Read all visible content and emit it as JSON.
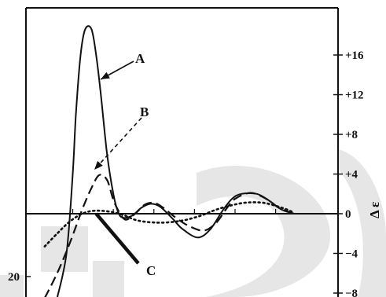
{
  "chart_data": {
    "type": "line",
    "xlim": [
      0,
      1
    ],
    "left_axis": {
      "ticks": [
        {
          "value": 20,
          "label": "20"
        }
      ]
    },
    "right_axis": {
      "title": "Δ ε",
      "ylim": [
        -8,
        20
      ],
      "ticks": [
        {
          "value": 16,
          "label": "+16"
        },
        {
          "value": 12,
          "label": "+12"
        },
        {
          "value": 8,
          "label": "+8"
        },
        {
          "value": 4,
          "label": "+4"
        },
        {
          "value": 0,
          "label": "0"
        },
        {
          "value": -4,
          "label": "−4"
        },
        {
          "value": -8,
          "label": "−8"
        }
      ]
    },
    "zero_line": 0,
    "series": [
      {
        "name": "A",
        "style": "solid",
        "points": [
          [
            0.1,
            -8.5
          ],
          [
            0.13,
            -4
          ],
          [
            0.15,
            4
          ],
          [
            0.16,
            10
          ],
          [
            0.175,
            16
          ],
          [
            0.19,
            18.6
          ],
          [
            0.21,
            18.6
          ],
          [
            0.225,
            16
          ],
          [
            0.24,
            12
          ],
          [
            0.26,
            6
          ],
          [
            0.28,
            2
          ],
          [
            0.295,
            0.2
          ],
          [
            0.31,
            -0.4
          ],
          [
            0.34,
            -0.2
          ],
          [
            0.37,
            0.6
          ],
          [
            0.4,
            1
          ],
          [
            0.43,
            0.7
          ],
          [
            0.47,
            -0.5
          ],
          [
            0.5,
            -1.5
          ],
          [
            0.55,
            -2.4
          ],
          [
            0.59,
            -1.6
          ],
          [
            0.63,
            0.3
          ],
          [
            0.66,
            1.5
          ],
          [
            0.69,
            2
          ],
          [
            0.74,
            2
          ],
          [
            0.78,
            1.3
          ],
          [
            0.82,
            0.4
          ],
          [
            0.86,
            0
          ]
        ]
      },
      {
        "name": "B",
        "style": "dashed",
        "points": [
          [
            0.06,
            -8.5
          ],
          [
            0.1,
            -6
          ],
          [
            0.14,
            -3
          ],
          [
            0.18,
            0.4
          ],
          [
            0.21,
            2.6
          ],
          [
            0.235,
            3.9
          ],
          [
            0.26,
            3.4
          ],
          [
            0.28,
            1.4
          ],
          [
            0.3,
            0.1
          ],
          [
            0.32,
            -0.6
          ],
          [
            0.35,
            0
          ],
          [
            0.38,
            0.9
          ],
          [
            0.41,
            1.1
          ],
          [
            0.44,
            0.6
          ],
          [
            0.48,
            -0.4
          ],
          [
            0.52,
            -1.2
          ],
          [
            0.57,
            -1.7
          ],
          [
            0.61,
            -0.9
          ],
          [
            0.64,
            0.4
          ],
          [
            0.67,
            1.5
          ],
          [
            0.72,
            2.1
          ],
          [
            0.77,
            1.5
          ],
          [
            0.81,
            0.6
          ],
          [
            0.86,
            0
          ]
        ]
      },
      {
        "name": "",
        "style": "dotted",
        "points": [
          [
            0.06,
            -3.3
          ],
          [
            0.1,
            -2
          ],
          [
            0.14,
            -0.8
          ],
          [
            0.18,
            0
          ],
          [
            0.22,
            0.3
          ],
          [
            0.27,
            0.2
          ],
          [
            0.31,
            -0.1
          ],
          [
            0.36,
            -0.7
          ],
          [
            0.43,
            -0.9
          ],
          [
            0.5,
            -0.7
          ],
          [
            0.56,
            -0.2
          ],
          [
            0.6,
            0.3
          ],
          [
            0.64,
            0.7
          ],
          [
            0.7,
            1.1
          ],
          [
            0.76,
            1.1
          ],
          [
            0.82,
            0.6
          ],
          [
            0.86,
            0.1
          ]
        ]
      },
      {
        "name": "C",
        "style": "thick",
        "points": [
          [
            0.225,
            0
          ],
          [
            0.36,
            -5
          ]
        ]
      }
    ]
  }
}
